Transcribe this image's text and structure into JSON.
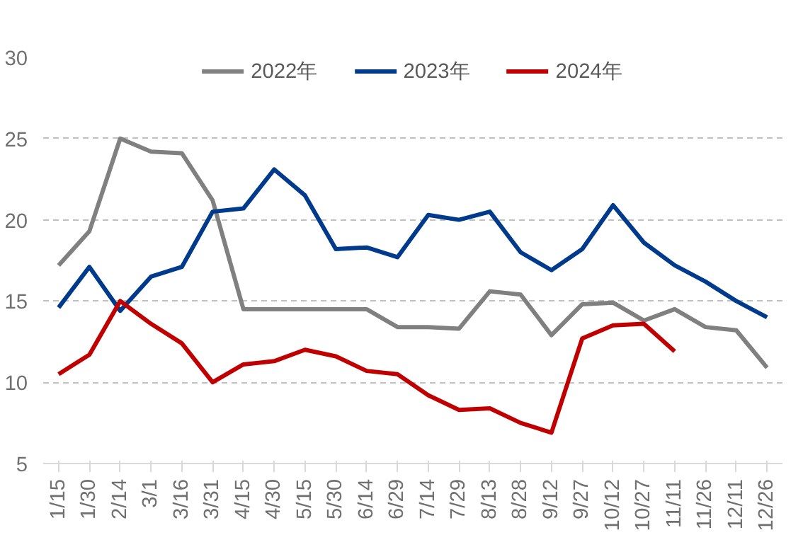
{
  "chart_data": {
    "type": "line",
    "categories": [
      "1/15",
      "1/30",
      "2/14",
      "3/1",
      "3/16",
      "3/31",
      "4/15",
      "4/30",
      "5/15",
      "5/30",
      "6/14",
      "6/29",
      "7/14",
      "7/29",
      "8/13",
      "8/28",
      "9/12",
      "9/27",
      "10/12",
      "10/27",
      "11/11",
      "11/26",
      "12/11",
      "12/26"
    ],
    "series": [
      {
        "name": "2022年",
        "color": "#808080",
        "values": [
          17.2,
          19.3,
          25.0,
          24.2,
          24.1,
          21.2,
          14.5,
          14.5,
          14.5,
          14.5,
          14.5,
          13.4,
          13.4,
          13.3,
          15.6,
          15.4,
          12.9,
          14.8,
          14.9,
          13.8,
          14.5,
          13.4,
          13.2,
          10.9
        ]
      },
      {
        "name": "2023年",
        "color": "#003a8c",
        "values": [
          14.6,
          17.1,
          14.4,
          16.5,
          17.1,
          20.5,
          20.7,
          23.1,
          21.5,
          18.2,
          18.3,
          17.7,
          20.3,
          20.0,
          20.5,
          18.0,
          16.9,
          18.2,
          20.9,
          18.6,
          17.2,
          16.2,
          15.0,
          14.0
        ]
      },
      {
        "name": "2024年",
        "color": "#c00000",
        "values": [
          10.5,
          11.7,
          15.0,
          13.6,
          12.4,
          10.0,
          11.1,
          11.3,
          12.0,
          11.6,
          10.7,
          10.5,
          9.2,
          8.3,
          8.4,
          7.5,
          6.9,
          12.7,
          13.5,
          13.6,
          11.9,
          null,
          null,
          null
        ]
      }
    ],
    "ylim": [
      5,
      30
    ],
    "yticks": [
      5,
      10,
      15,
      20,
      25,
      30
    ],
    "grid": "y",
    "legend": "top",
    "marker": "none",
    "line_style": "solid"
  }
}
